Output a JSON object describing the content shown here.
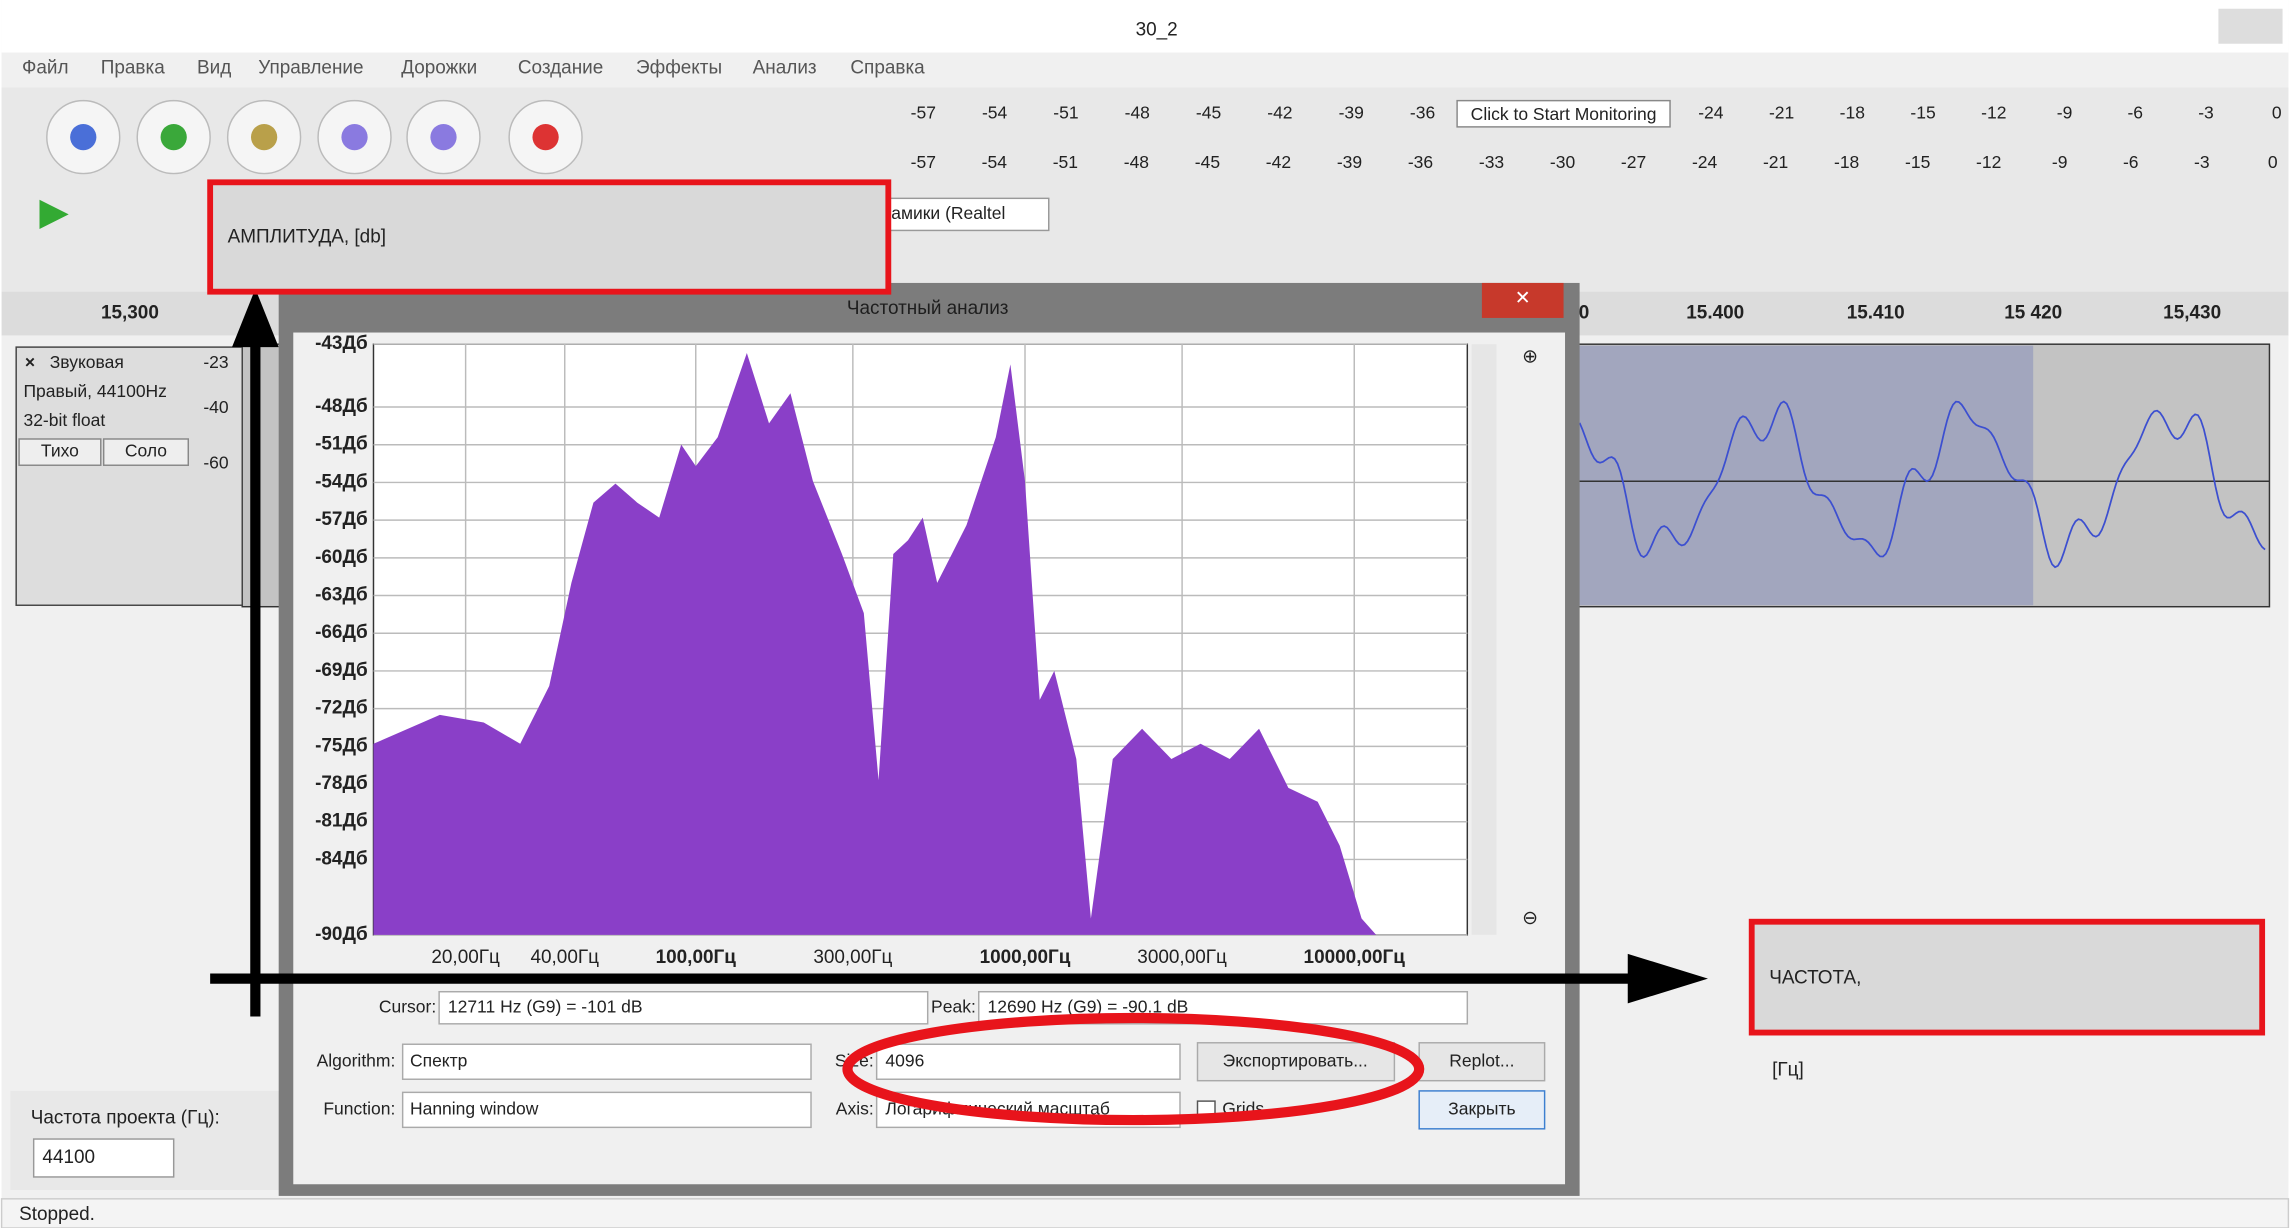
{
  "window": {
    "title": "30_2"
  },
  "menu": [
    "Файл",
    "Правка",
    "Вид",
    "Управление",
    "Дорожки",
    "Создание",
    "Эффекты",
    "Анализ",
    "Справка"
  ],
  "meters": {
    "top_left": [
      "-57",
      "-54",
      "-51",
      "-48",
      "-45",
      "-42",
      "-39",
      "-36"
    ],
    "monitor": "Click to Start Monitoring",
    "top_right": [
      "-24",
      "-21",
      "-18",
      "-15",
      "-12",
      "-9",
      "-6",
      "-3",
      "0"
    ],
    "bottom": [
      "-57",
      "-54",
      "-51",
      "-48",
      "-45",
      "-42",
      "-39",
      "-36",
      "-33",
      "-30",
      "-27",
      "-24",
      "-21",
      "-18",
      "-15",
      "-12",
      "-9",
      "-6",
      "-3",
      "0"
    ]
  },
  "device": "амики (Realtel",
  "timeline": [
    "15,300",
    "0",
    "15.400",
    "15.410",
    "15 420",
    "15,430"
  ],
  "track": {
    "name": "Звуковая",
    "info": [
      "Правый, 44100Hz",
      "32-bit float"
    ],
    "mute": "Тихо",
    "solo": "Соло",
    "scale": [
      "-23",
      "-40",
      "-60"
    ]
  },
  "project": {
    "rate_label": "Частота проекта (Гц):",
    "rate": "44100"
  },
  "status": "Stopped.",
  "dialog": {
    "title": "Частотный анализ",
    "cursor_label": "Cursor:",
    "cursor": "12711 Hz (G9) = -101 dB",
    "peak_label": "Peak:",
    "peak": "12690 Hz (G9) = -90.1 dB",
    "algorithm_label": "Algorithm:",
    "algorithm": "Спектр",
    "size_label": "Size:",
    "size": "4096",
    "export": "Экспортировать...",
    "replot": "Replot...",
    "function_label": "Function:",
    "function": "Hanning window",
    "axis_label": "Axis:",
    "axis": "Логарифмический масштаб",
    "grids": "Grids",
    "close": "Закрыть"
  },
  "annotations": {
    "amplitude": "АМПЛИТУДА, [db]",
    "frequency": [
      "ЧАСТОТА,",
      "[Гц]"
    ]
  },
  "chart_data": {
    "type": "area",
    "color": "#8a3fc8",
    "xscale": "log",
    "grid": true,
    "x": [
      10.5,
      16.7,
      22.7,
      29.3,
      35.9,
      41.9,
      48.9,
      57.0,
      66.4,
      77.4,
      90.3,
      100,
      116.6,
      143,
      167,
      194,
      227,
      278,
      324,
      359,
      398,
      441,
      489,
      541,
      600,
      664,
      736,
      815,
      903,
      1000,
      1108,
      1227,
      1431,
      1585,
      1848,
      2268,
      2783,
      3412,
      4188,
      5140,
      6310,
      7743,
      9030,
      10530,
      11660
    ],
    "values": [
      -74.8,
      -72.5,
      -73.1,
      -74.8,
      -70.2,
      -62.0,
      -55.6,
      -54.1,
      -55.6,
      -56.8,
      -51.0,
      -52.7,
      -50.4,
      -43.7,
      -49.3,
      -46.9,
      -53.9,
      -59.7,
      -64.4,
      -77.7,
      -59.7,
      -58.6,
      -56.8,
      -62.0,
      -59.7,
      -57.4,
      -53.9,
      -50.4,
      -44.6,
      -53.9,
      -71.3,
      -69.0,
      -76.0,
      -88.7,
      -76.0,
      -73.6,
      -76.0,
      -74.8,
      -76.0,
      -73.6,
      -78.3,
      -79.4,
      -82.9,
      -88.7,
      -90.0
    ],
    "xlim": [
      10.5,
      22050
    ],
    "ylim": [
      -43,
      -90
    ],
    "xticks": [
      {
        "value": 20,
        "label": "20,00Гц"
      },
      {
        "value": 40,
        "label": "40,00Гц"
      },
      {
        "value": 100,
        "label": "100,00Гц"
      },
      {
        "value": 300,
        "label": "300,00Гц"
      },
      {
        "value": 1000,
        "label": "1000,00Гц"
      },
      {
        "value": 3000,
        "label": "3000,00Гц"
      },
      {
        "value": 10000,
        "label": "10000,00Гц"
      }
    ],
    "yticks": [
      {
        "value": -43,
        "label": "-43Дб"
      },
      {
        "value": -48,
        "label": "-48Дб"
      },
      {
        "value": -51,
        "label": "-51Дб"
      },
      {
        "value": -54,
        "label": "-54Дб"
      },
      {
        "value": -57,
        "label": "-57Дб"
      },
      {
        "value": -60,
        "label": "-60Дб"
      },
      {
        "value": -63,
        "label": "-63Дб"
      },
      {
        "value": -66,
        "label": "-66Дб"
      },
      {
        "value": -69,
        "label": "-69Дб"
      },
      {
        "value": -72,
        "label": "-72Дб"
      },
      {
        "value": -75,
        "label": "-75Дб"
      },
      {
        "value": -78,
        "label": "-78Дб"
      },
      {
        "value": -81,
        "label": "-81Дб"
      },
      {
        "value": -84,
        "label": "-84Дб"
      },
      {
        "value": -90,
        "label": "-90Дб"
      }
    ]
  }
}
